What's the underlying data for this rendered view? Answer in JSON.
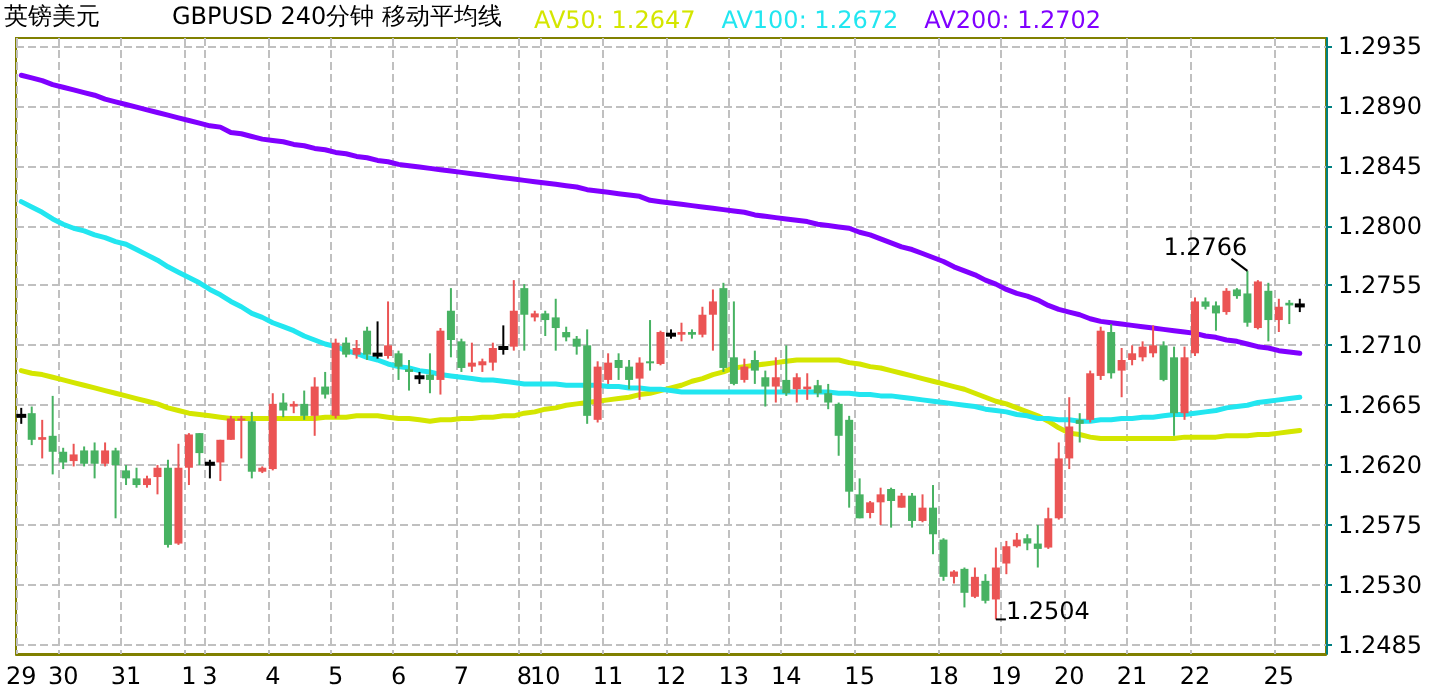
{
  "chart_data": {
    "type": "candlestick",
    "title": "英镑美元",
    "subtitle": "GBPUSD 240分钟 移动平均线",
    "categories": [
      "29",
      null,
      null,
      null,
      "30",
      null,
      null,
      null,
      null,
      null,
      "31",
      null,
      null,
      null,
      null,
      null,
      "1",
      null,
      "3",
      null,
      null,
      null,
      null,
      null,
      "4",
      null,
      null,
      null,
      null,
      null,
      "5",
      null,
      null,
      null,
      null,
      null,
      "6",
      null,
      null,
      null,
      null,
      null,
      "7",
      null,
      null,
      null,
      null,
      null,
      "8",
      null,
      "10",
      null,
      null,
      null,
      null,
      null,
      "11",
      null,
      null,
      null,
      null,
      null,
      "12",
      null,
      null,
      null,
      null,
      null,
      "13",
      null,
      null,
      null,
      null,
      "14",
      null,
      null,
      null,
      null,
      null,
      null,
      "15",
      null,
      null,
      null,
      null,
      null,
      null,
      null,
      "18",
      null,
      null,
      null,
      null,
      null,
      "19",
      null,
      null,
      null,
      null,
      null,
      "20",
      null,
      null,
      null,
      null,
      null,
      "21",
      null,
      null,
      null,
      null,
      null,
      "22",
      null,
      null,
      null,
      null,
      null,
      null,
      null,
      "25",
      null,
      null
    ],
    "series": [
      {
        "type": "candlestick",
        "ohlc": [
          [
            1.2657,
            1.2663,
            1.2651,
            1.2657
          ],
          [
            1.2659,
            1.2664,
            1.2635,
            1.2639
          ],
          [
            1.2639,
            1.2654,
            1.2625,
            1.2641
          ],
          [
            1.2642,
            1.2672,
            1.2613,
            1.263
          ],
          [
            1.263,
            1.2633,
            1.2617,
            1.2622
          ],
          [
            1.2623,
            1.2636,
            1.2619,
            1.2628
          ],
          [
            1.2631,
            1.2634,
            1.2619,
            1.2621
          ],
          [
            1.2631,
            1.2637,
            1.261,
            1.2621
          ],
          [
            1.2621,
            1.2637,
            1.2619,
            1.2631
          ],
          [
            1.2631,
            1.2633,
            1.258,
            1.262
          ],
          [
            1.2616,
            1.262,
            1.2605,
            1.261
          ],
          [
            1.261,
            1.2618,
            1.2603,
            1.2605
          ],
          [
            1.2605,
            1.2612,
            1.2603,
            1.261
          ],
          [
            1.2611,
            1.262,
            1.2598,
            1.2618
          ],
          [
            1.2618,
            1.2624,
            1.2558,
            1.256
          ],
          [
            1.2561,
            1.2636,
            1.256,
            1.2618
          ],
          [
            1.2618,
            1.2644,
            1.2605,
            1.2643
          ],
          [
            1.2644,
            1.2644,
            1.262,
            1.2629
          ],
          [
            1.2621,
            1.2624,
            1.261,
            1.2621
          ],
          [
            1.2622,
            1.2639,
            1.2608,
            1.2639
          ],
          [
            1.2639,
            1.2657,
            1.2639,
            1.2655
          ],
          [
            1.2654,
            1.2657,
            1.2625,
            1.2655
          ],
          [
            1.2653,
            1.266,
            1.261,
            1.2615
          ],
          [
            1.2615,
            1.2619,
            1.2614,
            1.2618
          ],
          [
            1.2617,
            1.2674,
            1.2616,
            1.2666
          ],
          [
            1.2667,
            1.2674,
            1.2656,
            1.2661
          ],
          [
            1.2664,
            1.2668,
            1.2659,
            1.2666
          ],
          [
            1.2666,
            1.2676,
            1.2654,
            1.2657
          ],
          [
            1.2657,
            1.2686,
            1.2642,
            1.2679
          ],
          [
            1.2679,
            1.269,
            1.267,
            1.2673
          ],
          [
            1.2657,
            1.2715,
            1.2655,
            1.2712
          ],
          [
            1.2712,
            1.2716,
            1.2701,
            1.2703
          ],
          [
            1.2703,
            1.2714,
            1.27,
            1.2708
          ],
          [
            1.2721,
            1.2724,
            1.2699,
            1.2703
          ],
          [
            1.2703,
            1.2728,
            1.27,
            1.2703
          ],
          [
            1.2702,
            1.2743,
            1.27,
            1.271
          ],
          [
            1.2704,
            1.2706,
            1.2684,
            1.2694
          ],
          [
            1.2692,
            1.2699,
            1.2676,
            1.269
          ],
          [
            1.2686,
            1.269,
            1.2681,
            1.2686
          ],
          [
            1.2688,
            1.2704,
            1.2674,
            1.2684
          ],
          [
            1.2684,
            1.2723,
            1.2673,
            1.2721
          ],
          [
            1.2736,
            1.2753,
            1.2701,
            1.2714
          ],
          [
            1.2713,
            1.2715,
            1.269,
            1.2693
          ],
          [
            1.2694,
            1.2712,
            1.269,
            1.2697
          ],
          [
            1.2695,
            1.27,
            1.269,
            1.2698
          ],
          [
            1.2697,
            1.2712,
            1.2691,
            1.2708
          ],
          [
            1.2708,
            1.2725,
            1.2703,
            1.2708
          ],
          [
            1.2709,
            1.2759,
            1.2706,
            1.2736
          ],
          [
            1.2753,
            1.2756,
            1.2706,
            1.2733
          ],
          [
            1.2731,
            1.2736,
            1.2728,
            1.2734
          ],
          [
            1.2734,
            1.2736,
            1.2717,
            1.2729
          ],
          [
            1.2731,
            1.2745,
            1.2706,
            1.2723
          ],
          [
            1.272,
            1.2724,
            1.2713,
            1.2716
          ],
          [
            1.2715,
            1.2717,
            1.2703,
            1.2709
          ],
          [
            1.271,
            1.2722,
            1.2651,
            1.2657
          ],
          [
            1.2654,
            1.2698,
            1.2652,
            1.2694
          ],
          [
            1.2684,
            1.2704,
            1.2681,
            1.2697
          ],
          [
            1.2699,
            1.2704,
            1.2684,
            1.2693
          ],
          [
            1.2694,
            1.2699,
            1.2677,
            1.2684
          ],
          [
            1.2685,
            1.2701,
            1.2669,
            1.2697
          ],
          [
            1.2698,
            1.2729,
            1.2691,
            1.2697
          ],
          [
            1.2696,
            1.2721,
            1.2695,
            1.272
          ],
          [
            1.2718,
            1.2722,
            1.2715,
            1.2718
          ],
          [
            1.2718,
            1.2727,
            1.2713,
            1.272
          ],
          [
            1.272,
            1.2722,
            1.2715,
            1.2718
          ],
          [
            1.2718,
            1.2739,
            1.2716,
            1.2733
          ],
          [
            1.2733,
            1.2752,
            1.2706,
            1.2743
          ],
          [
            1.2753,
            1.2757,
            1.269,
            1.2693
          ],
          [
            1.2701,
            1.2743,
            1.268,
            1.2681
          ],
          [
            1.2684,
            1.27,
            1.2682,
            1.2694
          ],
          [
            1.2699,
            1.2706,
            1.2681,
            1.2691
          ],
          [
            1.2686,
            1.2691,
            1.2664,
            1.2679
          ],
          [
            1.2679,
            1.2701,
            1.2667,
            1.2686
          ],
          [
            1.2684,
            1.271,
            1.2672,
            1.2674
          ],
          [
            1.2677,
            1.2689,
            1.2667,
            1.2686
          ],
          [
            1.2677,
            1.2689,
            1.2669,
            1.2679
          ],
          [
            1.268,
            1.2684,
            1.2671,
            1.2674
          ],
          [
            1.2674,
            1.2681,
            1.2662,
            1.2667
          ],
          [
            1.2666,
            1.2667,
            1.2627,
            1.2642
          ],
          [
            1.2654,
            1.2657,
            1.2588,
            1.26
          ],
          [
            1.2598,
            1.261,
            1.258,
            1.258
          ],
          [
            1.2584,
            1.2593,
            1.258,
            1.2592
          ],
          [
            1.2592,
            1.2603,
            1.2575,
            1.2598
          ],
          [
            1.2602,
            1.2603,
            1.2573,
            1.2593
          ],
          [
            1.2588,
            1.2599,
            1.2588,
            1.2597
          ],
          [
            1.2597,
            1.2599,
            1.2573,
            1.2578
          ],
          [
            1.2578,
            1.2598,
            1.2577,
            1.2588
          ],
          [
            1.2588,
            1.2605,
            1.2553,
            1.2568
          ],
          [
            1.2564,
            1.2565,
            1.2533,
            1.2536
          ],
          [
            1.2536,
            1.2541,
            1.2531,
            1.254
          ],
          [
            1.2542,
            1.2543,
            1.2513,
            1.2524
          ],
          [
            1.2521,
            1.2543,
            1.252,
            1.2536
          ],
          [
            1.2533,
            1.2538,
            1.2516,
            1.2518
          ],
          [
            1.2519,
            1.2558,
            1.2504,
            1.2543
          ],
          [
            1.2546,
            1.2563,
            1.2538,
            1.2559
          ],
          [
            1.2559,
            1.2569,
            1.2558,
            1.2564
          ],
          [
            1.2565,
            1.2568,
            1.2556,
            1.2561
          ],
          [
            1.2561,
            1.2575,
            1.2543,
            1.2557
          ],
          [
            1.2558,
            1.2588,
            1.2557,
            1.258
          ],
          [
            1.258,
            1.2637,
            1.2579,
            1.2625
          ],
          [
            1.2625,
            1.2671,
            1.2617,
            1.2649
          ],
          [
            1.2654,
            1.2659,
            1.2637,
            1.2651
          ],
          [
            1.2654,
            1.2691,
            1.2652,
            1.2689
          ],
          [
            1.2687,
            1.2724,
            1.2684,
            1.2721
          ],
          [
            1.272,
            1.2726,
            1.2685,
            1.2689
          ],
          [
            1.2691,
            1.2708,
            1.2671,
            1.2699
          ],
          [
            1.2699,
            1.271,
            1.2695,
            1.2704
          ],
          [
            1.2701,
            1.2713,
            1.2698,
            1.2709
          ],
          [
            1.2704,
            1.2725,
            1.2701,
            1.271
          ],
          [
            1.271,
            1.2713,
            1.2683,
            1.2684
          ],
          [
            1.2701,
            1.2709,
            1.2642,
            1.2659
          ],
          [
            1.2659,
            1.2709,
            1.2654,
            1.2701
          ],
          [
            1.2704,
            1.2746,
            1.2702,
            1.2743
          ],
          [
            1.2743,
            1.2746,
            1.2737,
            1.2739
          ],
          [
            1.274,
            1.2743,
            1.2721,
            1.2734
          ],
          [
            1.2735,
            1.2753,
            1.2733,
            1.2751
          ],
          [
            1.2752,
            1.2753,
            1.2745,
            1.2747
          ],
          [
            1.2749,
            1.2766,
            1.2724,
            1.2727
          ],
          [
            1.2723,
            1.2759,
            1.2722,
            1.2758
          ],
          [
            1.2751,
            1.2757,
            1.2713,
            1.2729
          ],
          [
            1.2729,
            1.2745,
            1.272,
            1.2739
          ],
          [
            1.2742,
            1.2744,
            1.2726,
            1.274
          ],
          [
            1.274,
            1.2745,
            1.2735,
            1.274
          ]
        ]
      },
      {
        "type": "line",
        "name": "AV50: 1.2647",
        "color": "#d4e600",
        "values": [
          1.2691,
          1.2689,
          1.2688,
          1.2686,
          1.2684,
          1.2682,
          1.268,
          1.2678,
          1.2676,
          1.2674,
          1.2672,
          1.267,
          1.2668,
          1.2666,
          1.2663,
          1.2661,
          1.2659,
          1.2658,
          1.2657,
          1.2656,
          1.2655,
          1.2655,
          1.2655,
          1.2655,
          1.2655,
          1.2655,
          1.2655,
          1.2655,
          1.2655,
          1.2656,
          1.2656,
          1.2656,
          1.2657,
          1.2657,
          1.2657,
          1.2656,
          1.2655,
          1.2655,
          1.2654,
          1.2653,
          1.2654,
          1.2654,
          1.2655,
          1.2655,
          1.2656,
          1.2656,
          1.2657,
          1.2657,
          1.2659,
          1.266,
          1.2662,
          1.2663,
          1.2665,
          1.2666,
          1.2667,
          1.2668,
          1.2669,
          1.267,
          1.2671,
          1.2673,
          1.2674,
          1.2676,
          1.2678,
          1.268,
          1.2683,
          1.2685,
          1.2688,
          1.269,
          1.2693,
          1.2694,
          1.2695,
          1.2696,
          1.2697,
          1.2698,
          1.2699,
          1.2699,
          1.2699,
          1.2699,
          1.2699,
          1.2697,
          1.2696,
          1.2694,
          1.2693,
          1.2691,
          1.2689,
          1.2687,
          1.2685,
          1.2683,
          1.2681,
          1.2679,
          1.2677,
          1.2674,
          1.2671,
          1.2668,
          1.2666,
          1.2663,
          1.266,
          1.2657,
          1.2653,
          1.2648,
          1.2644,
          1.2643,
          1.2641,
          1.264,
          1.264,
          1.264,
          1.264,
          1.264,
          1.264,
          1.264,
          1.264,
          1.2641,
          1.2641,
          1.2641,
          1.2641,
          1.2642,
          1.2642,
          1.2642,
          1.2643,
          1.2643,
          1.2644,
          1.2645,
          1.2646
        ]
      },
      {
        "type": "line",
        "name": "AV100: 1.2672",
        "color": "#22e6f0",
        "values": [
          1.2818,
          1.2814,
          1.281,
          1.2805,
          1.2801,
          1.2798,
          1.2796,
          1.2793,
          1.2791,
          1.2788,
          1.2786,
          1.2782,
          1.2778,
          1.2774,
          1.2769,
          1.2765,
          1.2761,
          1.2757,
          1.2752,
          1.2748,
          1.2743,
          1.2739,
          1.2734,
          1.2731,
          1.2727,
          1.2724,
          1.2721,
          1.2717,
          1.2714,
          1.2711,
          1.2709,
          1.2706,
          1.2704,
          1.2701,
          1.2699,
          1.2696,
          1.2694,
          1.2693,
          1.2691,
          1.269,
          1.2688,
          1.2687,
          1.2686,
          1.2685,
          1.2684,
          1.2684,
          1.2683,
          1.2682,
          1.2681,
          1.2681,
          1.2681,
          1.2681,
          1.268,
          1.268,
          1.268,
          1.268,
          1.2679,
          1.2679,
          1.2678,
          1.2678,
          1.2677,
          1.2677,
          1.2676,
          1.2675,
          1.2675,
          1.2675,
          1.2675,
          1.2675,
          1.2675,
          1.2675,
          1.2675,
          1.2675,
          1.2675,
          1.2675,
          1.2675,
          1.2675,
          1.2675,
          1.2675,
          1.2674,
          1.2674,
          1.2673,
          1.2673,
          1.2672,
          1.2672,
          1.2671,
          1.267,
          1.2669,
          1.2668,
          1.2667,
          1.2666,
          1.2665,
          1.2664,
          1.2662,
          1.2661,
          1.266,
          1.2658,
          1.2657,
          1.2655,
          1.2655,
          1.2654,
          1.2654,
          1.2653,
          1.2653,
          1.2654,
          1.2654,
          1.2655,
          1.2655,
          1.2656,
          1.2656,
          1.2657,
          1.2658,
          1.2658,
          1.2659,
          1.266,
          1.2661,
          1.2663,
          1.2664,
          1.2665,
          1.2667,
          1.2668,
          1.2669,
          1.267,
          1.2671
        ]
      },
      {
        "type": "line",
        "name": "AV200: 1.2702",
        "color": "#8000ff",
        "values": [
          1.2913,
          1.2911,
          1.2909,
          1.2906,
          1.2904,
          1.2902,
          1.29,
          1.2898,
          1.2895,
          1.2893,
          1.2891,
          1.2889,
          1.2887,
          1.2885,
          1.2883,
          1.2881,
          1.2879,
          1.2877,
          1.2875,
          1.2874,
          1.287,
          1.2869,
          1.2867,
          1.2865,
          1.2864,
          1.2863,
          1.2861,
          1.286,
          1.2858,
          1.2857,
          1.2855,
          1.2854,
          1.2852,
          1.2851,
          1.2849,
          1.2848,
          1.2846,
          1.2845,
          1.2844,
          1.2843,
          1.2842,
          1.2841,
          1.284,
          1.2839,
          1.2838,
          1.2837,
          1.2836,
          1.2835,
          1.2834,
          1.2833,
          1.2832,
          1.2831,
          1.283,
          1.2829,
          1.2827,
          1.2826,
          1.2825,
          1.2824,
          1.2823,
          1.2822,
          1.2819,
          1.2818,
          1.2817,
          1.2816,
          1.2815,
          1.2814,
          1.2813,
          1.2812,
          1.2811,
          1.281,
          1.2808,
          1.2807,
          1.2806,
          1.2805,
          1.2804,
          1.2803,
          1.2801,
          1.28,
          1.2799,
          1.2798,
          1.2795,
          1.2793,
          1.279,
          1.2787,
          1.2784,
          1.2782,
          1.2779,
          1.2776,
          1.2773,
          1.2769,
          1.2766,
          1.2763,
          1.2759,
          1.2756,
          1.2752,
          1.2749,
          1.2747,
          1.2744,
          1.274,
          1.2737,
          1.2735,
          1.2733,
          1.273,
          1.2728,
          1.2727,
          1.2726,
          1.2725,
          1.2724,
          1.2723,
          1.2722,
          1.2721,
          1.272,
          1.2719,
          1.2717,
          1.2716,
          1.2714,
          1.2713,
          1.2711,
          1.2709,
          1.2708,
          1.2706,
          1.2705,
          1.2704
        ]
      }
    ],
    "ylim": [
      1.2478,
      1.2941
    ],
    "yticks": [
      1.2935,
      {
        "value": 1.289,
        "label": "1.2890"
      },
      1.2845,
      {
        "value": 1.28,
        "label": "1.2800"
      },
      1.2755,
      {
        "value": 1.271,
        "label": "1.2710"
      },
      1.2665,
      {
        "value": 1.262,
        "label": "1.2620"
      },
      1.2575,
      {
        "value": 1.253,
        "label": "1.2530"
      },
      1.2485
    ],
    "annotations": [
      "1.2766",
      "1.2504"
    ],
    "grid": true,
    "legend": "top",
    "marker": "none",
    "line_style": "solid"
  }
}
